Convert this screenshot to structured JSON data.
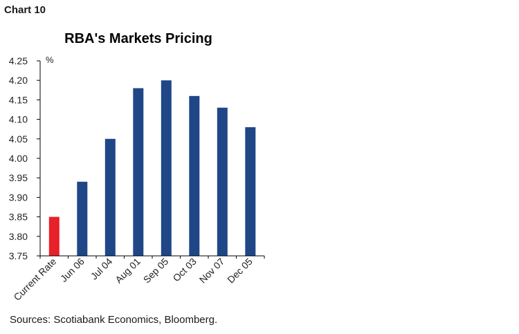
{
  "header": {
    "chart_label": "Chart 10"
  },
  "footer": {
    "source": "Sources: Scotiabank Economics, Bloomberg."
  },
  "colors": {
    "bar": "#1f4788",
    "highlight": "#e8202a",
    "axis": "#000000"
  },
  "chart_data": {
    "type": "bar",
    "title": "RBA's Markets Pricing",
    "unit": "%",
    "xlabel": "",
    "ylabel": "",
    "categories": [
      "Current Rate",
      "Jun 06",
      "Jul 04",
      "Aug 01",
      "Sep 05",
      "Oct 03",
      "Nov 07",
      "Dec 05"
    ],
    "values": [
      3.85,
      3.94,
      4.05,
      4.18,
      4.2,
      4.16,
      4.13,
      4.08
    ],
    "highlight_index": 0,
    "ylim": [
      3.75,
      4.25
    ],
    "yticks": [
      "3.75",
      "3.80",
      "3.85",
      "3.90",
      "3.95",
      "4.00",
      "4.05",
      "4.10",
      "4.15",
      "4.20",
      "4.25"
    ],
    "grid": false,
    "legend": "none"
  }
}
